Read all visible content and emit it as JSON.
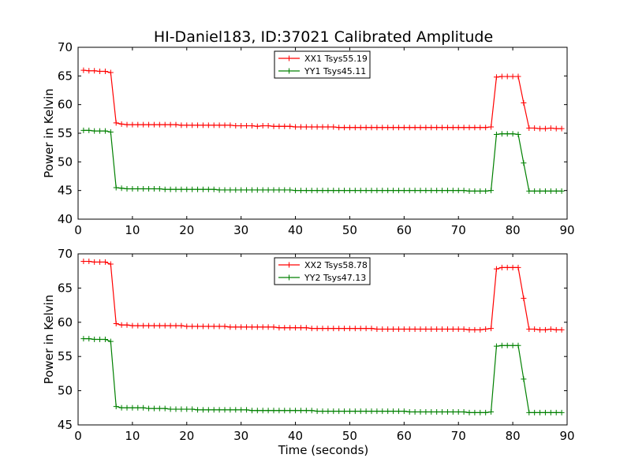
{
  "title": "HI-Daniel183, ID:37021 Calibrated Amplitude",
  "xlabel": "Time (seconds)",
  "colors": {
    "xx": "#ff0000",
    "yy": "#008000"
  },
  "chart_data": [
    {
      "type": "line",
      "ylabel": "Power in Kelvin",
      "xlim": [
        0,
        90
      ],
      "ylim": [
        40,
        70
      ],
      "xticks": [
        0,
        10,
        20,
        30,
        40,
        50,
        60,
        70,
        80,
        90
      ],
      "yticks": [
        40,
        45,
        50,
        55,
        60,
        65,
        70
      ],
      "legend_position": "top-center",
      "marker": "plus",
      "x": [
        1,
        2,
        3,
        4,
        5,
        6,
        7,
        8,
        9,
        10,
        11,
        12,
        13,
        14,
        15,
        16,
        17,
        18,
        19,
        20,
        21,
        22,
        23,
        24,
        25,
        26,
        27,
        28,
        29,
        30,
        31,
        32,
        33,
        34,
        35,
        36,
        37,
        38,
        39,
        40,
        41,
        42,
        43,
        44,
        45,
        46,
        47,
        48,
        49,
        50,
        51,
        52,
        53,
        54,
        55,
        56,
        57,
        58,
        59,
        60,
        61,
        62,
        63,
        64,
        65,
        66,
        67,
        68,
        69,
        70,
        71,
        72,
        73,
        74,
        75,
        76,
        77,
        78,
        79,
        80,
        81,
        82,
        83,
        84,
        85,
        86,
        87,
        88,
        89
      ],
      "series": [
        {
          "name": "XX1 Tsys55.19",
          "color": "#ff0000",
          "values": [
            66.0,
            65.9,
            65.9,
            65.8,
            65.8,
            65.6,
            56.8,
            56.6,
            56.5,
            56.5,
            56.5,
            56.5,
            56.5,
            56.5,
            56.5,
            56.5,
            56.5,
            56.5,
            56.4,
            56.4,
            56.4,
            56.4,
            56.4,
            56.4,
            56.4,
            56.4,
            56.4,
            56.4,
            56.3,
            56.3,
            56.3,
            56.3,
            56.2,
            56.3,
            56.3,
            56.2,
            56.2,
            56.2,
            56.2,
            56.1,
            56.1,
            56.1,
            56.1,
            56.1,
            56.1,
            56.1,
            56.1,
            56.0,
            56.0,
            56.0,
            56.0,
            56.0,
            56.0,
            56.0,
            56.0,
            56.0,
            56.0,
            56.0,
            56.0,
            56.0,
            56.0,
            56.0,
            56.0,
            56.0,
            56.0,
            56.0,
            56.0,
            56.0,
            56.0,
            56.0,
            56.0,
            56.0,
            56.0,
            56.0,
            56.0,
            56.1,
            64.8,
            64.9,
            64.9,
            64.9,
            64.9,
            60.3,
            55.9,
            55.9,
            55.8,
            55.8,
            55.9,
            55.8,
            55.8
          ]
        },
        {
          "name": "YY1 Tsys45.11",
          "color": "#008000",
          "values": [
            55.5,
            55.5,
            55.4,
            55.4,
            55.4,
            55.2,
            45.5,
            45.4,
            45.3,
            45.3,
            45.3,
            45.3,
            45.3,
            45.3,
            45.3,
            45.2,
            45.2,
            45.2,
            45.2,
            45.2,
            45.2,
            45.2,
            45.2,
            45.2,
            45.2,
            45.1,
            45.1,
            45.1,
            45.1,
            45.1,
            45.1,
            45.1,
            45.1,
            45.1,
            45.1,
            45.1,
            45.1,
            45.1,
            45.1,
            45.0,
            45.0,
            45.0,
            45.0,
            45.0,
            45.0,
            45.0,
            45.0,
            45.0,
            45.0,
            45.0,
            45.0,
            45.0,
            45.0,
            45.0,
            45.0,
            45.0,
            45.0,
            45.0,
            45.0,
            45.0,
            45.0,
            45.0,
            45.0,
            45.0,
            45.0,
            45.0,
            45.0,
            45.0,
            45.0,
            45.0,
            45.0,
            44.9,
            44.9,
            44.9,
            44.9,
            45.0,
            54.8,
            54.9,
            54.9,
            54.9,
            54.8,
            49.8,
            44.9,
            44.9,
            44.9,
            44.9,
            44.9,
            44.9,
            44.9
          ]
        }
      ]
    },
    {
      "type": "line",
      "ylabel": "Power in Kelvin",
      "xlabel": "Time (seconds)",
      "xlim": [
        0,
        90
      ],
      "ylim": [
        45,
        70
      ],
      "xticks": [
        0,
        10,
        20,
        30,
        40,
        50,
        60,
        70,
        80,
        90
      ],
      "yticks": [
        45,
        50,
        55,
        60,
        65,
        70
      ],
      "legend_position": "top-center",
      "marker": "plus",
      "x": [
        1,
        2,
        3,
        4,
        5,
        6,
        7,
        8,
        9,
        10,
        11,
        12,
        13,
        14,
        15,
        16,
        17,
        18,
        19,
        20,
        21,
        22,
        23,
        24,
        25,
        26,
        27,
        28,
        29,
        30,
        31,
        32,
        33,
        34,
        35,
        36,
        37,
        38,
        39,
        40,
        41,
        42,
        43,
        44,
        45,
        46,
        47,
        48,
        49,
        50,
        51,
        52,
        53,
        54,
        55,
        56,
        57,
        58,
        59,
        60,
        61,
        62,
        63,
        64,
        65,
        66,
        67,
        68,
        69,
        70,
        71,
        72,
        73,
        74,
        75,
        76,
        77,
        78,
        79,
        80,
        81,
        82,
        83,
        84,
        85,
        86,
        87,
        88,
        89
      ],
      "series": [
        {
          "name": "XX2 Tsys58.78",
          "color": "#ff0000",
          "values": [
            68.9,
            68.9,
            68.8,
            68.8,
            68.8,
            68.5,
            59.8,
            59.6,
            59.6,
            59.5,
            59.5,
            59.5,
            59.5,
            59.5,
            59.5,
            59.5,
            59.5,
            59.5,
            59.5,
            59.4,
            59.4,
            59.4,
            59.4,
            59.4,
            59.4,
            59.4,
            59.4,
            59.3,
            59.3,
            59.3,
            59.3,
            59.3,
            59.3,
            59.3,
            59.3,
            59.3,
            59.2,
            59.2,
            59.2,
            59.2,
            59.2,
            59.2,
            59.1,
            59.1,
            59.1,
            59.1,
            59.1,
            59.1,
            59.1,
            59.1,
            59.1,
            59.1,
            59.1,
            59.1,
            59.0,
            59.0,
            59.0,
            59.0,
            59.0,
            59.0,
            59.0,
            59.0,
            59.0,
            59.0,
            59.0,
            59.0,
            59.0,
            59.0,
            59.0,
            59.0,
            59.0,
            58.9,
            58.9,
            58.9,
            59.0,
            59.1,
            67.8,
            68.0,
            68.0,
            68.0,
            68.0,
            63.5,
            59.0,
            59.0,
            58.9,
            58.9,
            59.0,
            58.9,
            58.9
          ]
        },
        {
          "name": "YY2 Tsys47.13",
          "color": "#008000",
          "values": [
            57.6,
            57.6,
            57.5,
            57.5,
            57.5,
            57.2,
            47.7,
            47.5,
            47.5,
            47.5,
            47.5,
            47.5,
            47.4,
            47.4,
            47.4,
            47.4,
            47.3,
            47.3,
            47.3,
            47.3,
            47.3,
            47.2,
            47.2,
            47.2,
            47.2,
            47.2,
            47.2,
            47.2,
            47.2,
            47.2,
            47.2,
            47.1,
            47.1,
            47.1,
            47.1,
            47.1,
            47.1,
            47.1,
            47.1,
            47.1,
            47.1,
            47.1,
            47.1,
            47.0,
            47.0,
            47.0,
            47.0,
            47.0,
            47.0,
            47.0,
            47.0,
            47.0,
            47.0,
            47.0,
            47.0,
            47.0,
            47.0,
            47.0,
            47.0,
            47.0,
            46.9,
            46.9,
            46.9,
            46.9,
            46.9,
            46.9,
            46.9,
            46.9,
            46.9,
            46.9,
            46.9,
            46.8,
            46.8,
            46.8,
            46.8,
            46.9,
            56.5,
            56.6,
            56.6,
            56.6,
            56.6,
            51.7,
            46.8,
            46.8,
            46.8,
            46.8,
            46.8,
            46.8,
            46.8
          ]
        }
      ]
    }
  ]
}
